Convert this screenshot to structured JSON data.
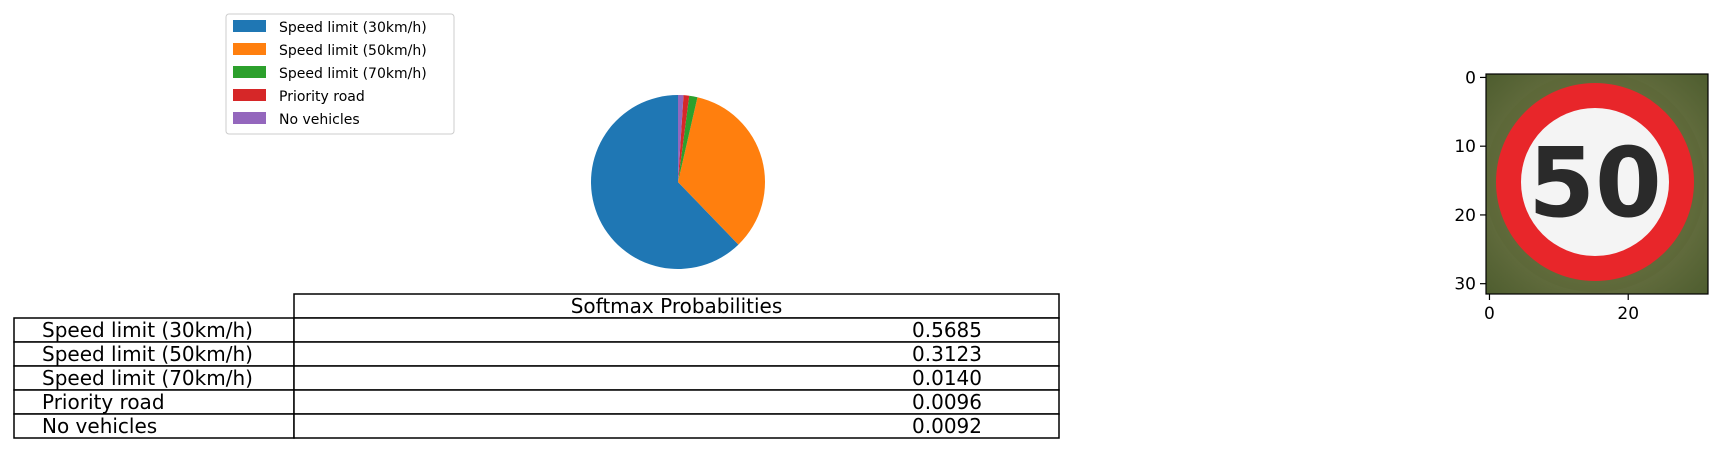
{
  "chart_data": [
    {
      "type": "pie",
      "categories": [
        "Speed limit (30km/h)",
        "Speed limit (50km/h)",
        "Speed limit (70km/h)",
        "Priority road",
        "No vehicles"
      ],
      "values": [
        0.5685,
        0.3123,
        0.014,
        0.0096,
        0.0092
      ],
      "colors": [
        "#1f77b4",
        "#ff7f0e",
        "#2ca02c",
        "#d62728",
        "#9467bd"
      ],
      "start_angle_deg": 90,
      "direction": "counterclockwise",
      "legend": "upper-left"
    },
    {
      "type": "table",
      "column_header": "Softmax Probabilities",
      "rows": [
        {
          "label": "Speed limit (30km/h)",
          "value": "0.5685"
        },
        {
          "label": "Speed limit (50km/h)",
          "value": "0.3123"
        },
        {
          "label": "Speed limit (70km/h)",
          "value": "0.0140"
        },
        {
          "label": "Priority road",
          "value": "0.0096"
        },
        {
          "label": "No vehicles",
          "value": "0.0092"
        }
      ]
    },
    {
      "type": "heatmap",
      "content": "traffic sign image: speed limit 50",
      "sign_text": "50",
      "x_ticks": [
        "0",
        "20"
      ],
      "y_ticks": [
        "0",
        "10",
        "20",
        "30"
      ],
      "xlim": [
        -0.5,
        31.5
      ],
      "ylim": [
        31.5,
        -0.5
      ]
    }
  ]
}
